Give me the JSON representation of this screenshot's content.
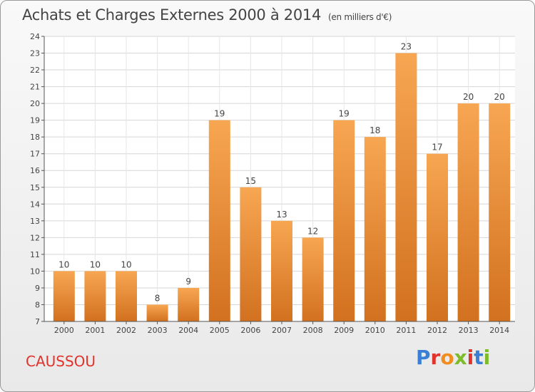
{
  "header": {
    "title": "Achats et Charges Externes 2000 à 2014",
    "subtitle": "(en milliers d'€)"
  },
  "footer": {
    "commune": "CAUSSOU",
    "logo_text": "Proxiti",
    "logo_colors": [
      "#3a7fd5",
      "#e0332b",
      "#f28c1e",
      "#7dbb2a",
      "#e0332b",
      "#3a7fd5",
      "#7dbb2a"
    ]
  },
  "chart_data": {
    "type": "bar",
    "title": "Achats et Charges Externes 2000 à 2014",
    "subtitle": "(en milliers d'€)",
    "categories": [
      "2000",
      "2001",
      "2002",
      "2003",
      "2004",
      "2005",
      "2006",
      "2007",
      "2008",
      "2009",
      "2010",
      "2011",
      "2012",
      "2013",
      "2014"
    ],
    "values": [
      10,
      10,
      10,
      8,
      9,
      19,
      15,
      13,
      12,
      19,
      18,
      23,
      17,
      20,
      20
    ],
    "ylim": [
      7,
      24
    ],
    "yticks": [
      7,
      8,
      9,
      10,
      11,
      12,
      13,
      14,
      15,
      16,
      17,
      18,
      19,
      20,
      21,
      22,
      23,
      24
    ],
    "grid": true,
    "bar_color_top": "#f7a652",
    "bar_color_bottom": "#d2711f",
    "data_labels": true
  }
}
